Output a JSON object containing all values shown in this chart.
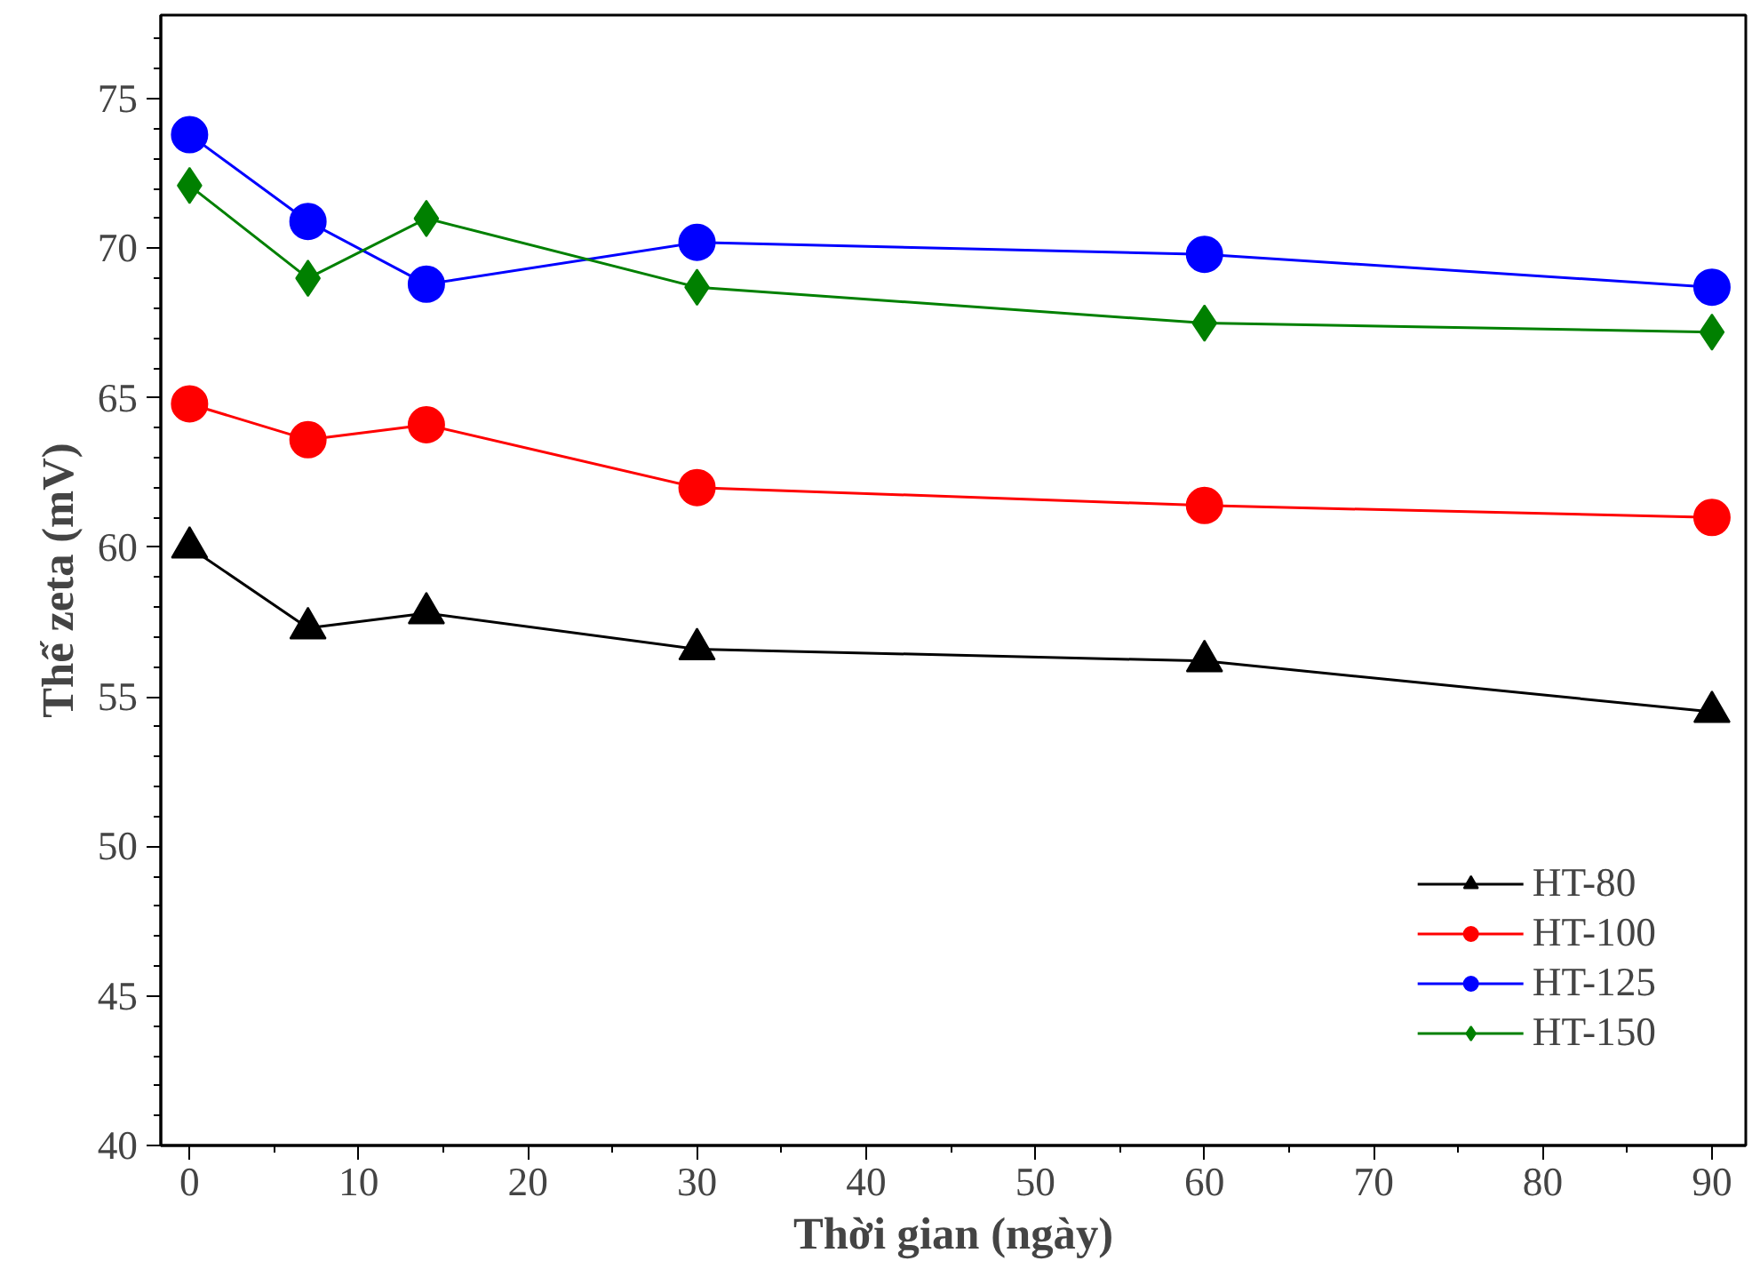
{
  "chart_data": {
    "type": "line",
    "xlabel": "Thời gian (ngày)",
    "ylabel": "Thế zeta (mV)",
    "x": [
      0,
      7,
      14,
      30,
      60,
      90
    ],
    "xlim": [
      -1.7,
      92
    ],
    "ylim": [
      40,
      77.8
    ],
    "xticks": [
      0,
      10,
      20,
      30,
      40,
      50,
      60,
      70,
      80,
      90
    ],
    "yticks": [
      40,
      45,
      50,
      55,
      60,
      65,
      70,
      75
    ],
    "grid": false,
    "legend": "bottom right",
    "line_style": "solid",
    "series": [
      {
        "name": "HT-80",
        "color": "#000000",
        "marker": "triangle",
        "values": [
          60.0,
          57.3,
          57.8,
          56.6,
          56.2,
          54.5
        ]
      },
      {
        "name": "HT-100",
        "color": "#ff0000",
        "marker": "circle",
        "values": [
          64.8,
          63.6,
          64.1,
          62.0,
          61.4,
          61.0
        ]
      },
      {
        "name": "HT-125",
        "color": "#0000ff",
        "marker": "circle",
        "values": [
          73.8,
          70.9,
          68.8,
          70.2,
          69.8,
          68.7
        ]
      },
      {
        "name": "HT-150",
        "color": "#008000",
        "marker": "diamond",
        "values": [
          72.1,
          69.0,
          71.0,
          68.7,
          67.5,
          67.2
        ]
      }
    ]
  }
}
